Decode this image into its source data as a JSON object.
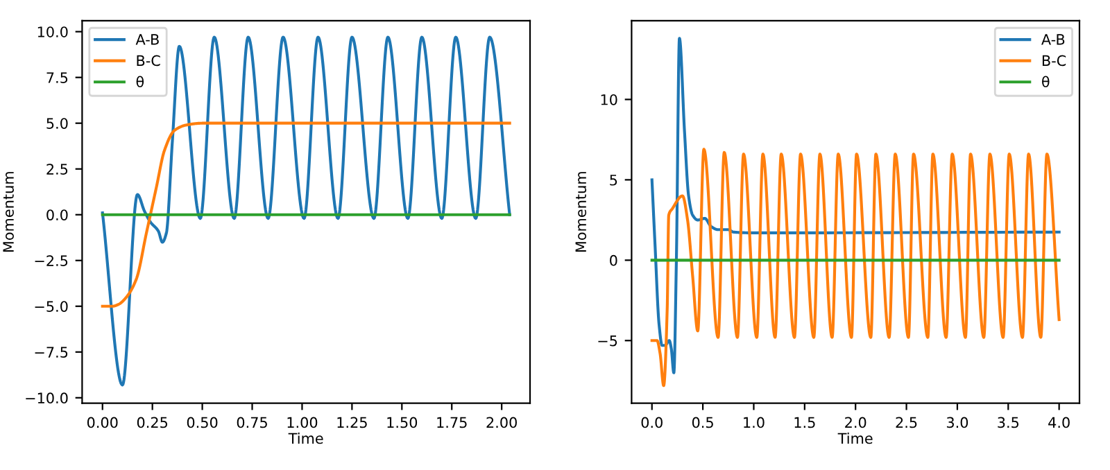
{
  "chart_data": [
    {
      "type": "line",
      "xlabel": "Time",
      "ylabel": "Momentum",
      "legend": "upper left",
      "xlim": [
        -0.102,
        2.142
      ],
      "ylim": [
        -10.3,
        10.6
      ],
      "xticks": [
        {
          "value": 0,
          "label": "0.00"
        },
        {
          "value": 0.25,
          "label": "0.25"
        },
        {
          "value": 0.5,
          "label": "0.50"
        },
        {
          "value": 0.75,
          "label": "0.75"
        },
        {
          "value": 1,
          "label": "1.00"
        },
        {
          "value": 1.25,
          "label": "1.25"
        },
        {
          "value": 1.5,
          "label": "1.50"
        },
        {
          "value": 1.75,
          "label": "1.75"
        },
        {
          "value": 2,
          "label": "2.00"
        }
      ],
      "yticks": [
        {
          "value": -10,
          "label": "−10.0"
        },
        {
          "value": -7.5,
          "label": "−7.5"
        },
        {
          "value": -5,
          "label": "−5.0"
        },
        {
          "value": -2.5,
          "label": "−2.5"
        },
        {
          "value": 0,
          "label": "0.0"
        },
        {
          "value": 2.5,
          "label": "2.5"
        },
        {
          "value": 5,
          "label": "5.0"
        },
        {
          "value": 7.5,
          "label": "7.5"
        },
        {
          "value": 10,
          "label": "10.0"
        }
      ],
      "series": [
        {
          "name": "A-B",
          "color": "#1f77b4",
          "x": [
            0,
            0.1,
            0.175,
            0.21,
            0.24,
            0.28,
            0.3,
            0.32,
            0.35,
            0.385,
            0.49,
            0.56,
            0.66,
            0.73,
            0.83,
            0.905,
            1.01,
            1.08,
            1.18,
            1.25,
            1.36,
            1.43,
            1.53,
            1.6,
            1.7,
            1.77,
            1.87,
            1.94,
            2.04
          ],
          "values": [
            0.1,
            -9.3,
            1.1,
            0.2,
            -0.4,
            -0.9,
            -1.5,
            -1.0,
            4,
            9.2,
            -0.2,
            9.7,
            -0.2,
            9.7,
            -0.2,
            9.7,
            -0.2,
            9.7,
            -0.2,
            9.7,
            -0.2,
            9.7,
            -0.2,
            9.7,
            -0.2,
            9.7,
            -0.2,
            9.7,
            0
          ]
        },
        {
          "name": "B-C",
          "color": "#ff7f0e",
          "x": [
            0,
            0.05,
            0.08,
            0.12,
            0.17,
            0.22,
            0.27,
            0.31,
            0.36,
            0.42,
            0.5,
            2.04
          ],
          "values": [
            -5,
            -5,
            -4.9,
            -4.5,
            -3.5,
            -1,
            1.5,
            3.5,
            4.6,
            4.9,
            5,
            5
          ]
        },
        {
          "name": "θ",
          "color": "#2ca02c",
          "x": [
            0,
            2.04
          ],
          "values": [
            0,
            0
          ]
        }
      ]
    },
    {
      "type": "line",
      "xlabel": "Time",
      "ylabel": "Momentum",
      "legend": "upper right",
      "xlim": [
        -0.2,
        4.2
      ],
      "ylim": [
        -8.9,
        14.9
      ],
      "xticks": [
        {
          "value": 0,
          "label": "0.0"
        },
        {
          "value": 0.5,
          "label": "0.5"
        },
        {
          "value": 1,
          "label": "1.0"
        },
        {
          "value": 1.5,
          "label": "1.5"
        },
        {
          "value": 2,
          "label": "2.0"
        },
        {
          "value": 2.5,
          "label": "2.5"
        },
        {
          "value": 3,
          "label": "3.0"
        },
        {
          "value": 3.5,
          "label": "3.5"
        },
        {
          "value": 4,
          "label": "4.0"
        }
      ],
      "yticks": [
        {
          "value": -5,
          "label": "−5"
        },
        0,
        5,
        10
      ],
      "series": [
        {
          "name": "A-B",
          "color": "#1f77b4",
          "x": [
            0,
            0.03,
            0.07,
            0.1,
            0.13,
            0.17,
            0.19,
            0.215,
            0.24,
            0.27,
            0.32,
            0.36,
            0.4,
            0.45,
            0.52,
            0.58,
            0.65,
            0.75,
            0.8,
            1.0,
            4.0
          ],
          "values": [
            5,
            1,
            -4,
            -5.3,
            -5.3,
            -5.0,
            -5.5,
            -7.0,
            0,
            13.8,
            8,
            4,
            2.8,
            2.5,
            2.6,
            2.1,
            1.9,
            1.9,
            1.75,
            1.7,
            1.75
          ]
        },
        {
          "name": "B-C",
          "color": "#ff7f0e",
          "x": [
            0,
            0.05,
            0.08,
            0.115,
            0.15,
            0.165,
            0.2,
            0.3,
            0.35,
            0.4,
            0.45,
            0.51,
            0.65,
            0.71,
            0.84,
            0.9,
            1.03,
            1.09,
            1.21,
            1.27,
            1.4,
            1.46,
            1.59,
            1.65,
            1.77,
            1.83,
            1.96,
            2.01,
            2.15,
            2.2,
            2.33,
            2.39,
            2.52,
            2.57,
            2.71,
            2.76,
            2.89,
            2.95,
            3.08,
            3.13,
            3.26,
            3.32,
            3.45,
            3.51,
            3.64,
            3.7,
            3.82,
            3.88,
            4.0
          ],
          "values": [
            -5,
            -5,
            -5.8,
            -7.8,
            -3,
            2.8,
            3.2,
            4.0,
            2.5,
            -1,
            -4.4,
            6.9,
            -4.8,
            6.7,
            -4.8,
            6.6,
            -4.8,
            6.6,
            -4.8,
            6.6,
            -4.8,
            6.6,
            -4.8,
            6.6,
            -4.8,
            6.6,
            -4.8,
            6.6,
            -4.8,
            6.6,
            -4.8,
            6.6,
            -4.8,
            6.6,
            -4.8,
            6.6,
            -4.8,
            6.6,
            -4.8,
            6.6,
            -4.8,
            6.6,
            -4.8,
            6.6,
            -4.8,
            6.6,
            -4.8,
            6.6,
            -3.7
          ]
        },
        {
          "name": "θ",
          "color": "#2ca02c",
          "x": [
            0,
            4.0
          ],
          "values": [
            0,
            0
          ]
        }
      ]
    }
  ]
}
